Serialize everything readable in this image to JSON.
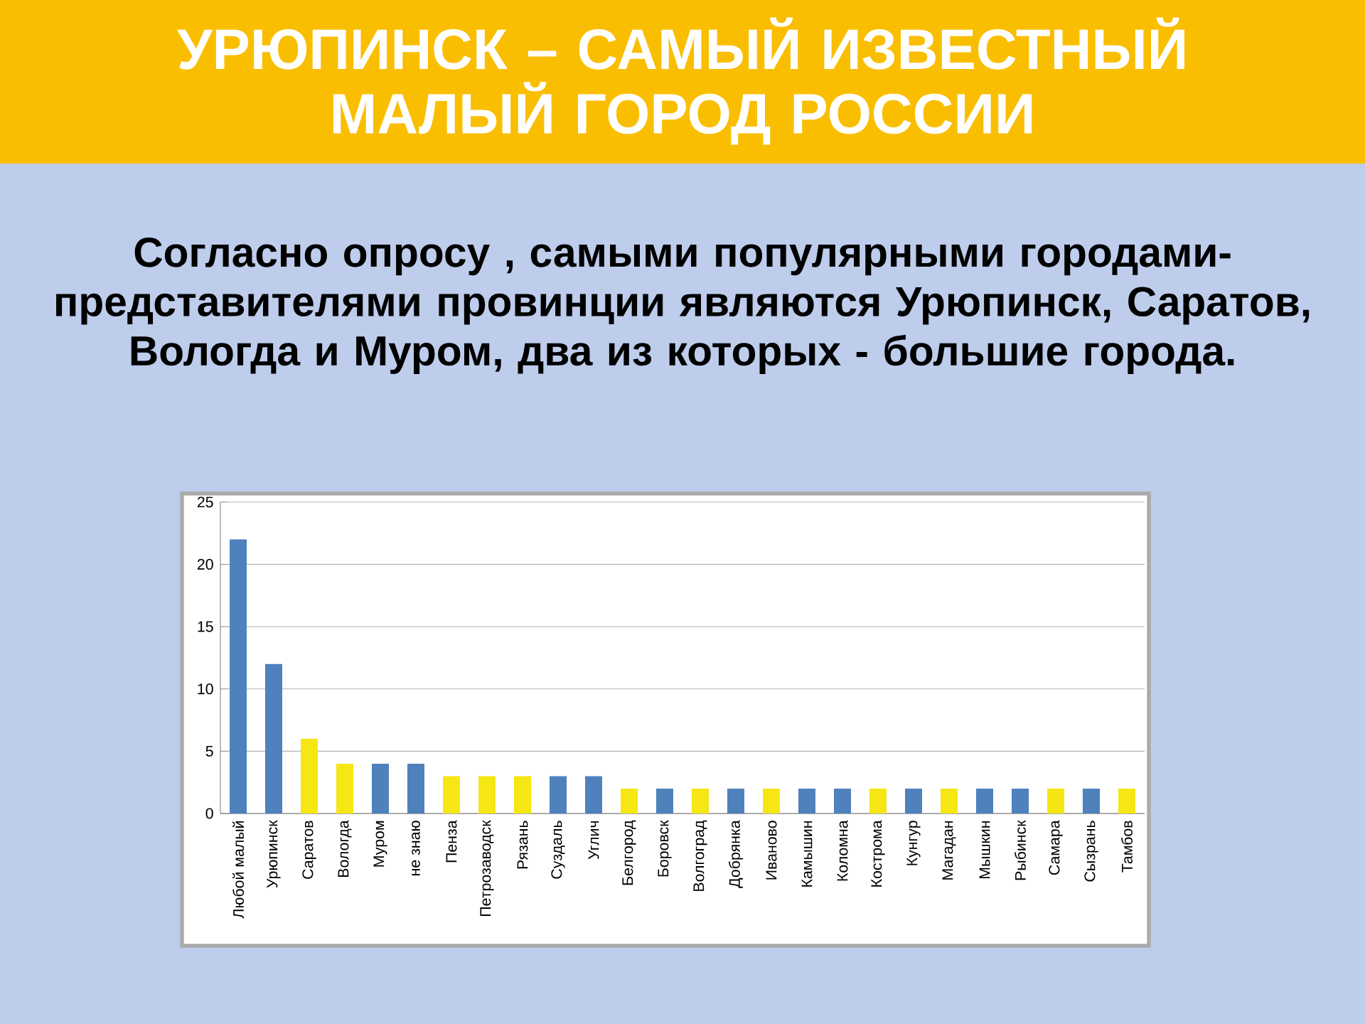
{
  "chart_data": {
    "type": "bar",
    "title": "УРЮПИНСК – САМЫЙ ИЗВЕСТНЫЙ МАЛЫЙ ГОРОД РОССИИ",
    "subtitle": "Согласно опросу , самыми популярными городами-представителями провинции являются Урюпинск, Саратов, Вологда и Муром,  два из которых  - большие города.",
    "categories": [
      "Любой малый",
      "Урюпинск",
      "Саратов",
      "Вологда",
      "Муром",
      "не знаю",
      "Пенза",
      "Петрозаводск",
      "Рязань",
      "Суздаль",
      "Углич",
      "Белгород",
      "Боровск",
      "Волгоград",
      "Добрянка",
      "Иваново",
      "Камышин",
      "Коломна",
      "Кострома",
      "Кунгур",
      "Магадан",
      "Мышкин",
      "Рыбинск",
      "Самара",
      "Сызрань",
      "Тамбов"
    ],
    "values": [
      22,
      12,
      6,
      4,
      4,
      4,
      3,
      3,
      3,
      3,
      3,
      2,
      2,
      2,
      2,
      2,
      2,
      2,
      2,
      2,
      2,
      2,
      2,
      2,
      2,
      2
    ],
    "colors": [
      "#4f81bd",
      "#4f81bd",
      "#f5e614",
      "#f5e614",
      "#4f81bd",
      "#4f81bd",
      "#f5e614",
      "#f5e614",
      "#f5e614",
      "#4f81bd",
      "#4f81bd",
      "#f5e614",
      "#4f81bd",
      "#f5e614",
      "#4f81bd",
      "#f5e614",
      "#4f81bd",
      "#4f81bd",
      "#f5e614",
      "#4f81bd",
      "#f5e614",
      "#4f81bd",
      "#4f81bd",
      "#f5e614",
      "#4f81bd",
      "#f5e614"
    ],
    "ylim": [
      0,
      25
    ],
    "yticks": [
      0,
      5,
      10,
      15,
      20,
      25
    ],
    "grid": "y"
  }
}
